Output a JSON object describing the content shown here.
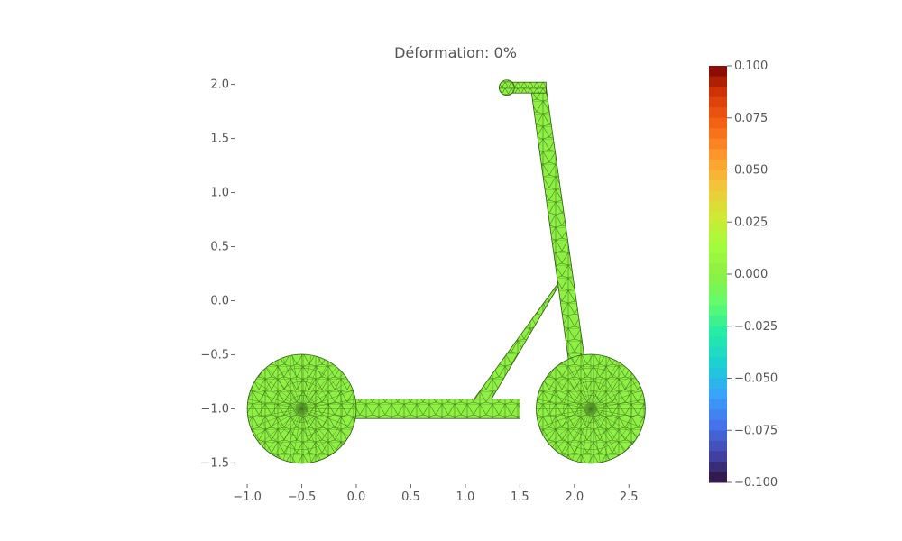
{
  "chart_data": {
    "type": "heatmap",
    "title": "Déformation: 0%",
    "xlabel": "",
    "ylabel": "",
    "xlim": [
      -1.1,
      2.87
    ],
    "ylim": [
      -1.68,
      2.18
    ],
    "xticks": [
      "−1.0",
      "−0.5",
      "0.0",
      "0.5",
      "1.0",
      "1.5",
      "2.0",
      "2.5"
    ],
    "xtick_values": [
      -1.0,
      -0.5,
      0.0,
      0.5,
      1.0,
      1.5,
      2.0,
      2.5
    ],
    "yticks": [
      "2.0",
      "1.5",
      "1.0",
      "0.5",
      "0.0",
      "−0.5",
      "−1.0",
      "−1.5"
    ],
    "ytick_values": [
      2.0,
      1.5,
      1.0,
      0.5,
      0.0,
      -0.5,
      -1.0,
      -1.5
    ],
    "colorbar": {
      "min": -0.1,
      "max": 0.1,
      "ticks": [
        "0.100",
        "0.075",
        "0.050",
        "0.025",
        "0.000",
        "−0.025",
        "−0.050",
        "−0.075",
        "−0.100"
      ],
      "tick_values": [
        0.1,
        0.075,
        0.05,
        0.025,
        0.0,
        -0.025,
        -0.05,
        -0.075,
        -0.1
      ],
      "colormap": "turbo"
    },
    "field_value": 0.0,
    "geometry": {
      "rear_wheel": {
        "cx": -0.5,
        "cy": -1.0,
        "r": 0.5
      },
      "front_wheel": {
        "cx": 2.15,
        "cy": -1.0,
        "r": 0.5
      },
      "deck": {
        "x0": -0.05,
        "x1": 1.5,
        "y0": -1.09,
        "y1": -0.91
      },
      "stem": [
        [
          1.6,
          1.97
        ],
        [
          1.74,
          1.97
        ],
        [
          2.1,
          -0.58
        ],
        [
          1.95,
          -0.58
        ]
      ],
      "handlebar": {
        "x0": 1.38,
        "x1": 1.74,
        "y0": 1.92,
        "y1": 2.02
      },
      "grip": {
        "cx": 1.38,
        "cy": 1.97,
        "r": 0.07
      },
      "brace": [
        [
          1.08,
          -0.91
        ],
        [
          1.24,
          -0.91
        ],
        [
          1.92,
          0.25
        ],
        [
          1.82,
          0.12
        ]
      ]
    },
    "mesh_color": "#8ef043",
    "grid": false,
    "legend": "none"
  }
}
